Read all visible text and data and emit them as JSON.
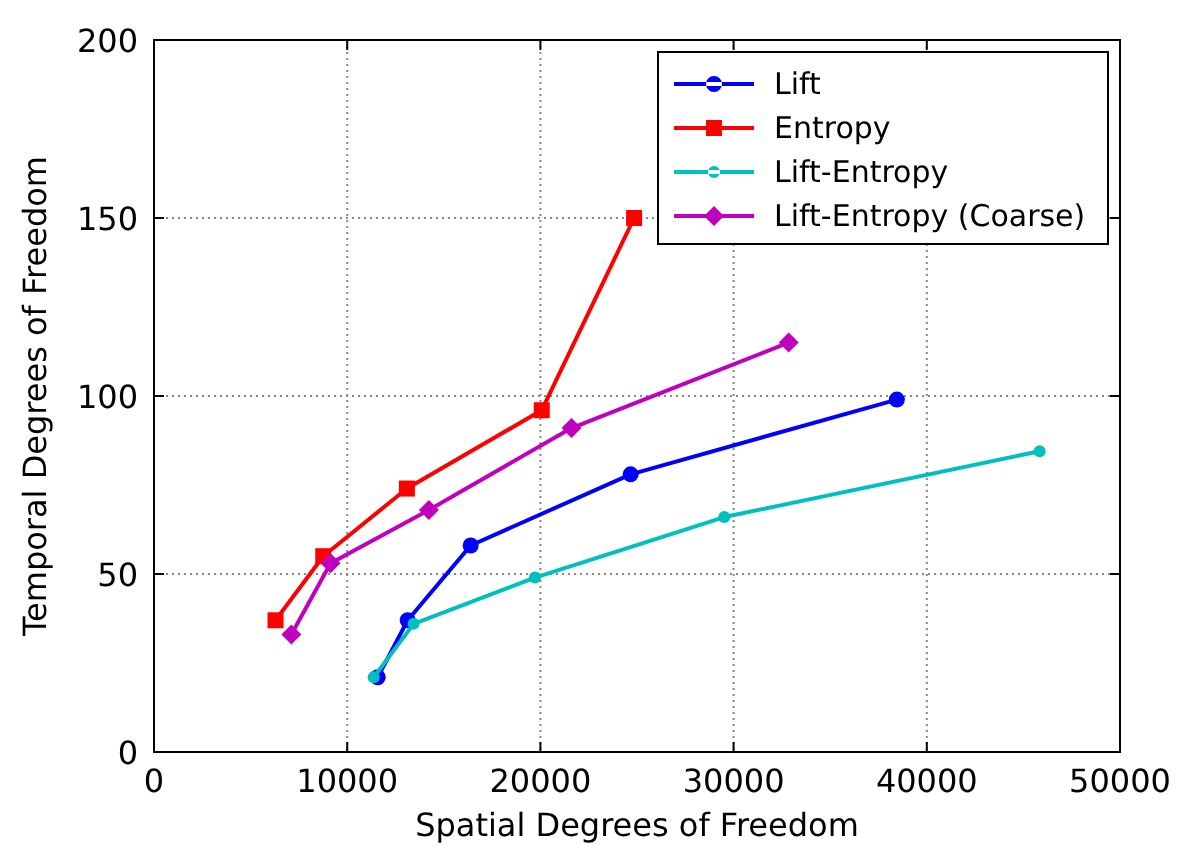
{
  "chart_data": {
    "type": "line",
    "xlabel": "Spatial Degrees of Freedom",
    "ylabel": "Temporal Degrees of Freedom",
    "xlim": [
      0,
      50000
    ],
    "xticks": [
      0,
      10000,
      20000,
      30000,
      40000,
      50000
    ],
    "ylim": [
      0,
      200
    ],
    "yticks": [
      0,
      50,
      100,
      150,
      200
    ],
    "grid": true,
    "legend": "top right",
    "series": [
      {
        "name": "Lift",
        "color": "#0000ff",
        "marker": "circle",
        "x": [
          11580,
          13130,
          16390,
          24670,
          38450
        ],
        "values": [
          21,
          37,
          58,
          78,
          99
        ]
      },
      {
        "name": "Entropy",
        "color": "#ff0000",
        "marker": "square",
        "x": [
          6290,
          8760,
          13090,
          20070,
          24850
        ],
        "values": [
          37,
          55,
          74,
          96,
          150
        ]
      },
      {
        "name": "Lift-Entropy",
        "color": "#00bfbf",
        "marker": "circle",
        "x": [
          11370,
          13440,
          19720,
          29520,
          45840
        ],
        "values": [
          21,
          36,
          49,
          66,
          84.5
        ]
      },
      {
        "name": "Lift-Entropy (Coarse)",
        "color": "#bf00bf",
        "marker": "diamond",
        "x": [
          7110,
          9140,
          14230,
          21610,
          32850
        ],
        "values": [
          33,
          53,
          68,
          91,
          115
        ]
      }
    ]
  }
}
